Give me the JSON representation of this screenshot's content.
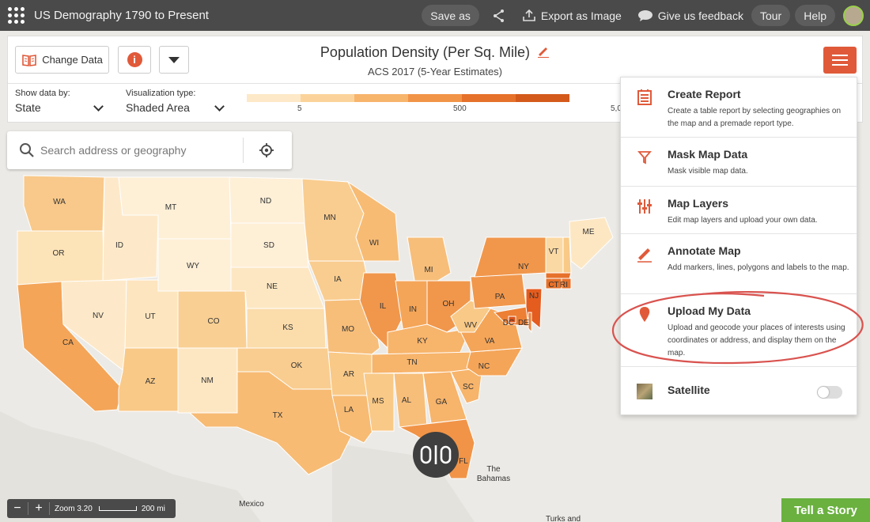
{
  "app": {
    "title": "US Demography 1790 to Present"
  },
  "topbar": {
    "save_as": "Save as",
    "export_label": "Export as Image",
    "feedback_label": "Give us feedback",
    "tour": "Tour",
    "help": "Help"
  },
  "header": {
    "change_data": "Change Data",
    "title": "Population Density (Per Sq. Mile)",
    "subtitle": "ACS 2017 (5-Year Estimates)",
    "show_by_label": "Show data by:",
    "show_by_value": "State",
    "viz_label": "Visualization type:",
    "viz_value": "Shaded Area",
    "legend_ticks": [
      "5",
      "500",
      "5,0"
    ],
    "legend_colors": [
      "#fde9c7",
      "#fbd39a",
      "#f7b46b",
      "#f19447",
      "#e6712a",
      "#d45a1c"
    ]
  },
  "search": {
    "placeholder": "Search address or geography"
  },
  "map": {
    "states": [
      {
        "abbr": "WA",
        "color": "#f8c98a"
      },
      {
        "abbr": "OR",
        "color": "#fde3b8"
      },
      {
        "abbr": "CA",
        "color": "#f4a558"
      },
      {
        "abbr": "ID",
        "color": "#fde9c9"
      },
      {
        "abbr": "NV",
        "color": "#fde9c9"
      },
      {
        "abbr": "MT",
        "color": "#feefd7"
      },
      {
        "abbr": "WY",
        "color": "#feefd7"
      },
      {
        "abbr": "UT",
        "color": "#fde5bf"
      },
      {
        "abbr": "CO",
        "color": "#f9cf93"
      },
      {
        "abbr": "AZ",
        "color": "#f9c987"
      },
      {
        "abbr": "NM",
        "color": "#fde7c3"
      },
      {
        "abbr": "ND",
        "color": "#feefd7"
      },
      {
        "abbr": "SD",
        "color": "#feefd7"
      },
      {
        "abbr": "NE",
        "color": "#fde7c3"
      },
      {
        "abbr": "KS",
        "color": "#fbdcab"
      },
      {
        "abbr": "OK",
        "color": "#f9cd90"
      },
      {
        "abbr": "TX",
        "color": "#f7bb74"
      },
      {
        "abbr": "MN",
        "color": "#f9cd90"
      },
      {
        "abbr": "IA",
        "color": "#f9cd90"
      },
      {
        "abbr": "MO",
        "color": "#f7be7a"
      },
      {
        "abbr": "AR",
        "color": "#f9c987"
      },
      {
        "abbr": "LA",
        "color": "#f7bb74"
      },
      {
        "abbr": "WI",
        "color": "#f7bb74"
      },
      {
        "abbr": "IL",
        "color": "#f0974c"
      },
      {
        "abbr": "MI",
        "color": "#f7be7a"
      },
      {
        "abbr": "IN",
        "color": "#f4a558"
      },
      {
        "abbr": "OH",
        "color": "#f0974c"
      },
      {
        "abbr": "KY",
        "color": "#f7b46b"
      },
      {
        "abbr": "TN",
        "color": "#f7b46b"
      },
      {
        "abbr": "MS",
        "color": "#f9c987"
      },
      {
        "abbr": "AL",
        "color": "#f7be7a"
      },
      {
        "abbr": "GA",
        "color": "#f7b46b"
      },
      {
        "abbr": "FL",
        "color": "#f19447"
      },
      {
        "abbr": "SC",
        "color": "#f7b46b"
      },
      {
        "abbr": "NC",
        "color": "#f4a558"
      },
      {
        "abbr": "VA",
        "color": "#f4a558"
      },
      {
        "abbr": "WV",
        "color": "#f9c987"
      },
      {
        "abbr": "PA",
        "color": "#f0974c"
      },
      {
        "abbr": "NY",
        "color": "#f0974c"
      },
      {
        "abbr": "VT",
        "color": "#fbd9a4"
      },
      {
        "abbr": "NH",
        "color": "#f9c987"
      },
      {
        "abbr": "ME",
        "color": "#fde7c3"
      },
      {
        "abbr": "MA",
        "color": "#e6712a"
      },
      {
        "abbr": "CT",
        "color": "#e6712a"
      },
      {
        "abbr": "RI",
        "color": "#e6712a"
      },
      {
        "abbr": "NJ",
        "color": "#e45c1e"
      },
      {
        "abbr": "MD",
        "color": "#ec7f34"
      },
      {
        "abbr": "DE",
        "color": "#ec7f34"
      },
      {
        "abbr": "DC",
        "color": "#d9531a"
      }
    ],
    "labels": [
      {
        "text": "WA"
      },
      {
        "text": "OR"
      },
      {
        "text": "CA"
      },
      {
        "text": "ID"
      },
      {
        "text": "NV"
      },
      {
        "text": "MT"
      },
      {
        "text": "WY"
      },
      {
        "text": "UT"
      },
      {
        "text": "CO"
      },
      {
        "text": "AZ"
      },
      {
        "text": "NM"
      },
      {
        "text": "ND"
      },
      {
        "text": "SD"
      },
      {
        "text": "NE"
      },
      {
        "text": "KS"
      },
      {
        "text": "OK"
      },
      {
        "text": "TX"
      },
      {
        "text": "MN"
      },
      {
        "text": "IA"
      },
      {
        "text": "MO"
      },
      {
        "text": "AR"
      },
      {
        "text": "LA"
      },
      {
        "text": "WI"
      },
      {
        "text": "IL"
      },
      {
        "text": "MI"
      },
      {
        "text": "IN"
      },
      {
        "text": "OH"
      },
      {
        "text": "KY"
      },
      {
        "text": "TN"
      },
      {
        "text": "MS"
      },
      {
        "text": "AL"
      },
      {
        "text": "GA"
      },
      {
        "text": "FL"
      },
      {
        "text": "SC"
      },
      {
        "text": "NC"
      },
      {
        "text": "VA"
      },
      {
        "text": "WV"
      },
      {
        "text": "PA"
      },
      {
        "text": "NY"
      },
      {
        "text": "VT"
      },
      {
        "text": "ME"
      },
      {
        "text": "NJ"
      },
      {
        "text": "DC"
      },
      {
        "text": "DE"
      },
      {
        "text": "CT"
      },
      {
        "text": "RI"
      }
    ],
    "places": [
      "Mexico",
      "The",
      "Bahamas",
      "Turks and"
    ]
  },
  "menu": {
    "items": [
      {
        "title": "Create Report",
        "desc": "Create a table report by selecting geographies on the map and a premade report type."
      },
      {
        "title": "Mask Map Data",
        "desc": "Mask visible map data."
      },
      {
        "title": "Map Layers",
        "desc": "Edit map layers and upload your own data."
      },
      {
        "title": "Annotate Map",
        "desc": "Add markers, lines, polygons and labels to the map."
      },
      {
        "title": "Upload My Data",
        "desc": "Upload and geocode your places of interests using coordinates or address, and display them on the map."
      },
      {
        "title": "Satellite",
        "desc": ""
      }
    ]
  },
  "bottom": {
    "zoom_text": "Zoom 3.20",
    "scale_text": "200 mi",
    "tell_story": "Tell a Story"
  },
  "colors": {
    "accent": "#e05a3a",
    "topbar": "#4a4a4a",
    "story_green": "#6ab13f",
    "annotation_red": "#d9534f"
  }
}
